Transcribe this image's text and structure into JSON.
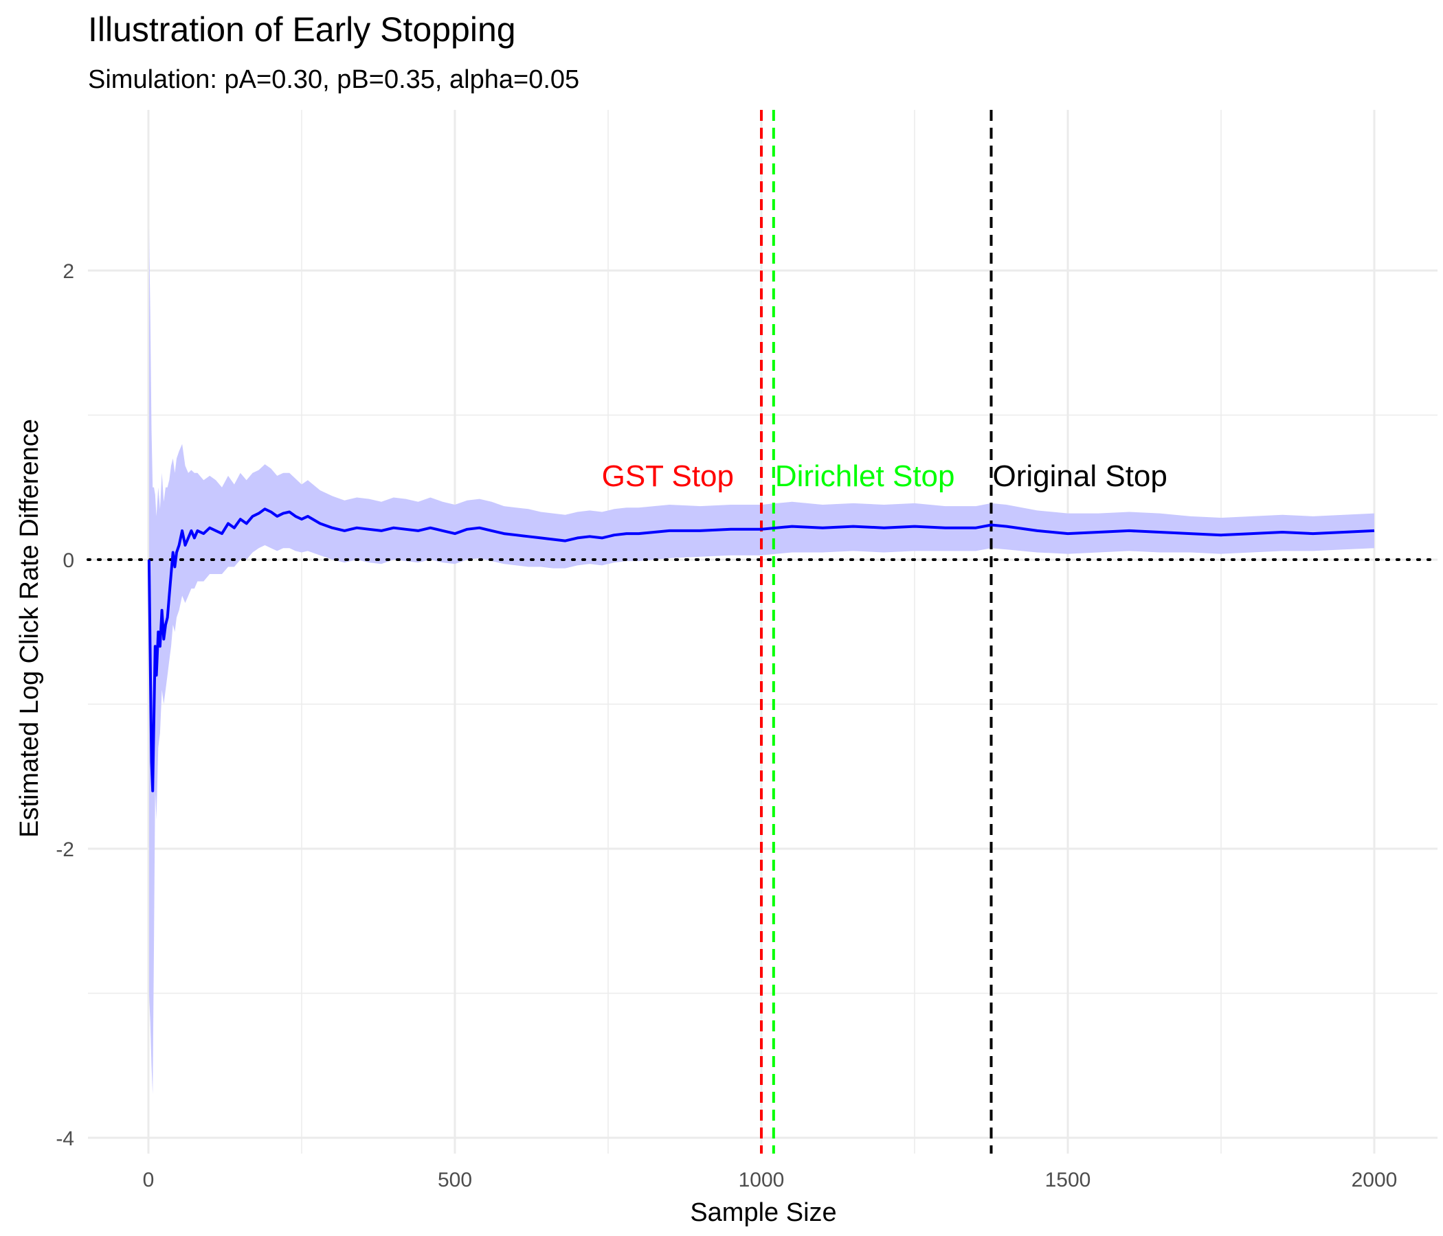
{
  "chart_data": {
    "type": "line",
    "title": "Illustration of Early Stopping",
    "subtitle": "Simulation: pA=0.30, pB=0.35, alpha=0.05",
    "xlabel": "Sample Size",
    "ylabel": "Estimated Log Click Rate Difference",
    "xlim": [
      -100,
      2060
    ],
    "ylim": [
      -4.05,
      3.1
    ],
    "x_ticks": [
      0,
      500,
      1000,
      1500,
      2000
    ],
    "x_tick_labels": [
      "0",
      "500",
      "1000",
      "1500",
      "2000"
    ],
    "y_ticks": [
      -4,
      -2,
      0,
      2
    ],
    "y_tick_labels": [
      "-4",
      "-2",
      "0",
      "2"
    ],
    "grid": true,
    "colors": {
      "line": "#0000ff",
      "band": "#c8c8ff",
      "gst": "#ff0000",
      "dirichlet": "#00ff00",
      "original": "#000000",
      "grid": "#ebebeb"
    },
    "series": [
      {
        "x": [
          1,
          3,
          5,
          7,
          9,
          11,
          13,
          16,
          19,
          22,
          25,
          28,
          31,
          34,
          37,
          40,
          43,
          46,
          50,
          55,
          60,
          65,
          70,
          75,
          80,
          90,
          100,
          110,
          120,
          130,
          140,
          150,
          160,
          170,
          180,
          190,
          200,
          210,
          220,
          230,
          240,
          250,
          260,
          280,
          300,
          320,
          340,
          360,
          380,
          400,
          420,
          440,
          460,
          480,
          500,
          520,
          540,
          560,
          580,
          600,
          620,
          640,
          660,
          680,
          700,
          720,
          740,
          760,
          780,
          800,
          850,
          900,
          950,
          1000,
          1050,
          1100,
          1150,
          1200,
          1250,
          1300,
          1350,
          1375,
          1400,
          1450,
          1500,
          1550,
          1600,
          1650,
          1700,
          1750,
          1800,
          1850,
          1900,
          1950,
          2000
        ],
        "y": [
          0.0,
          -0.7,
          -1.4,
          -1.6,
          -1.1,
          -0.6,
          -0.8,
          -0.5,
          -0.6,
          -0.35,
          -0.55,
          -0.45,
          -0.4,
          -0.25,
          -0.1,
          0.05,
          -0.05,
          0.05,
          0.1,
          0.2,
          0.1,
          0.15,
          0.2,
          0.15,
          0.2,
          0.18,
          0.22,
          0.2,
          0.18,
          0.25,
          0.22,
          0.28,
          0.25,
          0.3,
          0.32,
          0.35,
          0.33,
          0.3,
          0.32,
          0.33,
          0.3,
          0.28,
          0.3,
          0.25,
          0.22,
          0.2,
          0.22,
          0.21,
          0.2,
          0.22,
          0.21,
          0.2,
          0.22,
          0.2,
          0.18,
          0.21,
          0.22,
          0.2,
          0.18,
          0.17,
          0.16,
          0.15,
          0.14,
          0.13,
          0.15,
          0.16,
          0.15,
          0.17,
          0.18,
          0.18,
          0.2,
          0.2,
          0.21,
          0.21,
          0.23,
          0.22,
          0.23,
          0.22,
          0.23,
          0.22,
          0.22,
          0.24,
          0.23,
          0.2,
          0.18,
          0.19,
          0.2,
          0.19,
          0.18,
          0.17,
          0.18,
          0.19,
          0.18,
          0.19,
          0.2
        ],
        "lower": [
          -3.0,
          -3.2,
          -3.5,
          -3.7,
          -2.7,
          -1.6,
          -1.8,
          -1.3,
          -1.2,
          -0.9,
          -1.0,
          -0.9,
          -0.8,
          -0.7,
          -0.6,
          -0.45,
          -0.5,
          -0.4,
          -0.35,
          -0.25,
          -0.3,
          -0.25,
          -0.2,
          -0.2,
          -0.15,
          -0.15,
          -0.1,
          -0.1,
          -0.1,
          -0.05,
          -0.05,
          0.0,
          0.0,
          0.05,
          0.08,
          0.1,
          0.08,
          0.06,
          0.08,
          0.08,
          0.06,
          0.05,
          0.06,
          0.03,
          0.0,
          -0.02,
          0.0,
          -0.02,
          -0.03,
          0.0,
          -0.01,
          -0.02,
          0.0,
          -0.02,
          -0.03,
          0.0,
          0.01,
          -0.01,
          -0.03,
          -0.04,
          -0.05,
          -0.05,
          -0.06,
          -0.06,
          -0.04,
          -0.03,
          -0.04,
          -0.02,
          -0.01,
          -0.01,
          0.01,
          0.02,
          0.03,
          0.03,
          0.05,
          0.05,
          0.06,
          0.05,
          0.06,
          0.06,
          0.06,
          0.08,
          0.07,
          0.05,
          0.04,
          0.05,
          0.06,
          0.05,
          0.05,
          0.04,
          0.05,
          0.06,
          0.06,
          0.07,
          0.08
        ],
        "upper": [
          2.3,
          1.7,
          0.9,
          0.5,
          0.5,
          0.45,
          0.3,
          0.5,
          0.35,
          0.6,
          0.4,
          0.5,
          0.5,
          0.55,
          0.65,
          0.7,
          0.6,
          0.7,
          0.75,
          0.8,
          0.65,
          0.6,
          0.62,
          0.6,
          0.6,
          0.55,
          0.58,
          0.55,
          0.5,
          0.58,
          0.52,
          0.6,
          0.55,
          0.6,
          0.62,
          0.66,
          0.63,
          0.58,
          0.6,
          0.6,
          0.56,
          0.52,
          0.55,
          0.48,
          0.44,
          0.41,
          0.43,
          0.42,
          0.4,
          0.43,
          0.42,
          0.4,
          0.43,
          0.4,
          0.38,
          0.41,
          0.42,
          0.4,
          0.37,
          0.36,
          0.35,
          0.33,
          0.32,
          0.31,
          0.33,
          0.34,
          0.33,
          0.35,
          0.36,
          0.36,
          0.38,
          0.37,
          0.38,
          0.38,
          0.4,
          0.38,
          0.39,
          0.38,
          0.39,
          0.37,
          0.37,
          0.39,
          0.38,
          0.34,
          0.32,
          0.32,
          0.33,
          0.32,
          0.3,
          0.29,
          0.3,
          0.31,
          0.3,
          0.31,
          0.32
        ]
      }
    ],
    "reference_line_y": 0,
    "stops": [
      {
        "label": "GST Stop",
        "x": 1000,
        "color": "#ff0000",
        "label_y": 0.58,
        "anchor": "end"
      },
      {
        "label": "Dirichlet Stop",
        "x": 1020,
        "color": "#00ff00",
        "label_y": 0.58,
        "anchor": "start"
      },
      {
        "label": "Original Stop",
        "x": 1375,
        "color": "#000000",
        "label_y": 0.58,
        "anchor": "start"
      }
    ]
  }
}
